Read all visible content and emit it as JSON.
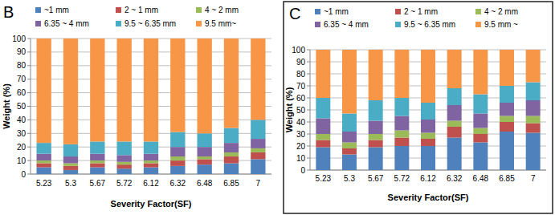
{
  "chart_data": [
    {
      "type": "bar",
      "title": "B",
      "stacked": true,
      "grid": true,
      "x_label": "Severity Factor(SF)",
      "y_label": "Weight (%)",
      "categories": [
        "5.23",
        "5.3",
        "5.67",
        "5.72",
        "6.12",
        "6.32",
        "6.48",
        "6.85",
        "7"
      ],
      "ylim": [
        0,
        100
      ],
      "yticks": [
        0,
        10,
        20,
        30,
        40,
        50,
        60,
        70,
        80,
        90,
        100
      ],
      "series": [
        {
          "name": "~1 mm",
          "color": "#4f81bd",
          "values": [
            5,
            3,
            5,
            4,
            5,
            6,
            7,
            8,
            11
          ]
        },
        {
          "name": "2 ~ 1 mm",
          "color": "#c0504d",
          "values": [
            3,
            3,
            3,
            3,
            3,
            4,
            4,
            5,
            5
          ]
        },
        {
          "name": "4 ~ 2 mm",
          "color": "#9bbb59",
          "values": [
            2,
            2,
            2,
            2,
            2,
            3,
            2,
            3,
            3
          ]
        },
        {
          "name": "6.35 ~ 4 mm",
          "color": "#8064a2",
          "values": [
            5,
            5,
            5,
            5,
            5,
            7,
            7,
            7,
            7
          ]
        },
        {
          "name": "9.5 ~ 6.35 mm",
          "color": "#4bacc6",
          "values": [
            8,
            9,
            9,
            10,
            9,
            11,
            10,
            11,
            14
          ]
        },
        {
          "name": "9.5 mm~",
          "color": "#f79646",
          "values": [
            77,
            78,
            76,
            76,
            76,
            69,
            70,
            66,
            60
          ]
        }
      ]
    },
    {
      "type": "bar",
      "title": "C",
      "stacked": true,
      "grid": true,
      "x_label": "Severity Factor(SF)",
      "y_label": "Weight (%)",
      "categories": [
        "5.23",
        "5.3",
        "5.67",
        "5.72",
        "6.12",
        "6.32",
        "6.48",
        "6.85",
        "7"
      ],
      "ylim": [
        0,
        100
      ],
      "yticks": [
        0,
        10,
        20,
        30,
        40,
        50,
        60,
        70,
        80,
        90,
        100
      ],
      "series": [
        {
          "name": "~1 mm",
          "color": "#4f81bd",
          "values": [
            19,
            13,
            19,
            20,
            20,
            27,
            23,
            32,
            31
          ]
        },
        {
          "name": "2 ~ 1 mm",
          "color": "#c0504d",
          "values": [
            6,
            5,
            6,
            7,
            6,
            9,
            7,
            8,
            8
          ]
        },
        {
          "name": "4 ~ 2 mm",
          "color": "#9bbb59",
          "values": [
            5,
            5,
            5,
            6,
            5,
            5,
            5,
            5,
            6
          ]
        },
        {
          "name": "6.35 ~ 4 mm",
          "color": "#8064a2",
          "values": [
            13,
            9,
            11,
            12,
            11,
            13,
            12,
            11,
            13
          ]
        },
        {
          "name": "9.5 ~ 6.35 mm",
          "color": "#4bacc6",
          "values": [
            17,
            15,
            17,
            15,
            14,
            14,
            16,
            14,
            15
          ]
        },
        {
          "name": "9.5 mm ~",
          "color": "#f79646",
          "values": [
            40,
            53,
            42,
            40,
            44,
            32,
            37,
            30,
            27
          ]
        }
      ]
    }
  ]
}
